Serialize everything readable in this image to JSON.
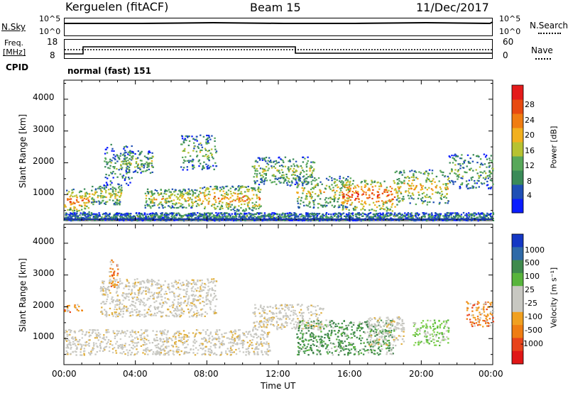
{
  "header": {
    "station": "Kerguelen (fitACF)",
    "beam": "Beam 15",
    "date": "11/Dec/2017"
  },
  "nsky_panel": {
    "left_label": "N.Sky",
    "left_ticks": [
      "10^5",
      "10^0"
    ],
    "right_label": "N.Search",
    "right_ticks": [
      "10^5",
      "10^0"
    ]
  },
  "freq_panel": {
    "left_label_line1": "Freq.",
    "left_label_line2": "[MHz]",
    "left_ticks": [
      "18",
      "8"
    ],
    "right_label": "Nave",
    "right_ticks": [
      "60",
      "0"
    ]
  },
  "cpid": {
    "label": "CPID",
    "text": "normal (fast) 151"
  },
  "x_axis": {
    "label": "Time UT",
    "ticks": [
      "00:00",
      "04:00",
      "08:00",
      "12:00",
      "16:00",
      "20:00",
      "00:00"
    ]
  },
  "chart_data": [
    {
      "type": "heatmap",
      "panel": "power",
      "ylabel": "Slant Range [km]",
      "y_ticks": [
        "1000",
        "2000",
        "3000",
        "4000"
      ],
      "ylim": [
        180,
        4600
      ],
      "xlim_hours": [
        0,
        24
      ],
      "colorbar": {
        "label": "Power [dB]",
        "ticks": [
          "4",
          "8",
          "12",
          "16",
          "20",
          "24",
          "28"
        ],
        "colors": [
          "#0a1cff",
          "#1f4fb5",
          "#3a8a58",
          "#58a85a",
          "#b7c231",
          "#f2b01e",
          "#f07d12",
          "#e84a10",
          "#e41b1b"
        ]
      },
      "echo_regions": [
        {
          "t0": 0.0,
          "t1": 1.4,
          "r0": 450,
          "r1": 1200,
          "intensity": 0.75
        },
        {
          "t0": 1.5,
          "t1": 3.2,
          "r0": 700,
          "r1": 1300,
          "intensity": 0.55
        },
        {
          "t0": 2.2,
          "t1": 3.8,
          "r0": 1300,
          "r1": 2600,
          "intensity": 0.35
        },
        {
          "t0": 3.3,
          "t1": 5.0,
          "r0": 1700,
          "r1": 2400,
          "intensity": 0.45
        },
        {
          "t0": 4.5,
          "t1": 7.5,
          "r0": 600,
          "r1": 1200,
          "intensity": 0.6
        },
        {
          "t0": 6.5,
          "t1": 8.5,
          "r0": 1800,
          "r1": 2900,
          "intensity": 0.4
        },
        {
          "t0": 7.5,
          "t1": 11.0,
          "r0": 500,
          "r1": 1300,
          "intensity": 0.7
        },
        {
          "t0": 10.5,
          "t1": 14.0,
          "r0": 1300,
          "r1": 2200,
          "intensity": 0.45
        },
        {
          "t0": 13.0,
          "t1": 16.0,
          "r0": 600,
          "r1": 1600,
          "intensity": 0.55
        },
        {
          "t0": 15.5,
          "t1": 18.5,
          "r0": 500,
          "r1": 1500,
          "intensity": 0.85
        },
        {
          "t0": 18.5,
          "t1": 21.5,
          "r0": 700,
          "r1": 1800,
          "intensity": 0.6
        },
        {
          "t0": 21.5,
          "t1": 24.0,
          "r0": 1200,
          "r1": 2300,
          "intensity": 0.4
        },
        {
          "t0": 0.0,
          "t1": 24.0,
          "r0": 200,
          "r1": 450,
          "intensity": 0.3
        }
      ]
    },
    {
      "type": "heatmap",
      "panel": "velocity",
      "ylabel": "Slant Range [km]",
      "y_ticks": [
        "1000",
        "2000",
        "3000",
        "4000"
      ],
      "ylim": [
        180,
        4600
      ],
      "xlim_hours": [
        0,
        24
      ],
      "colorbar": {
        "label": "Velocity [m s⁻¹]",
        "ticks": [
          "1000",
          "500",
          "100",
          "25",
          "-25",
          "-100",
          "-500",
          "-1000"
        ],
        "colors": [
          "#1437c4",
          "#2f6aa8",
          "#3f8a4d",
          "#58b43c",
          "#c8c8c2",
          "#c8c8c2",
          "#f0a020",
          "#ef7d12",
          "#e8431a",
          "#e01616"
        ]
      },
      "echo_regions": [
        {
          "t0": 0.0,
          "t1": 11.5,
          "r0": 500,
          "r1": 1300,
          "class": "gray"
        },
        {
          "t0": 2.0,
          "t1": 8.5,
          "r0": 1700,
          "r1": 2900,
          "class": "gray"
        },
        {
          "t0": 10.5,
          "t1": 14.5,
          "r0": 1300,
          "r1": 2100,
          "class": "gray"
        },
        {
          "t0": 13.0,
          "t1": 18.5,
          "r0": 500,
          "r1": 1600,
          "class": "green"
        },
        {
          "t0": 17.0,
          "t1": 19.0,
          "r0": 800,
          "r1": 1700,
          "class": "gray"
        },
        {
          "t0": 19.5,
          "t1": 21.5,
          "r0": 800,
          "r1": 1600,
          "class": "lightgreen"
        },
        {
          "t0": 0.0,
          "t1": 1.0,
          "r0": 1850,
          "r1": 2100,
          "class": "orange"
        },
        {
          "t0": 2.5,
          "t1": 3.0,
          "r0": 2600,
          "r1": 3500,
          "class": "orange"
        },
        {
          "t0": 22.5,
          "t1": 24.0,
          "r0": 1400,
          "r1": 2200,
          "class": "orange"
        }
      ]
    }
  ]
}
